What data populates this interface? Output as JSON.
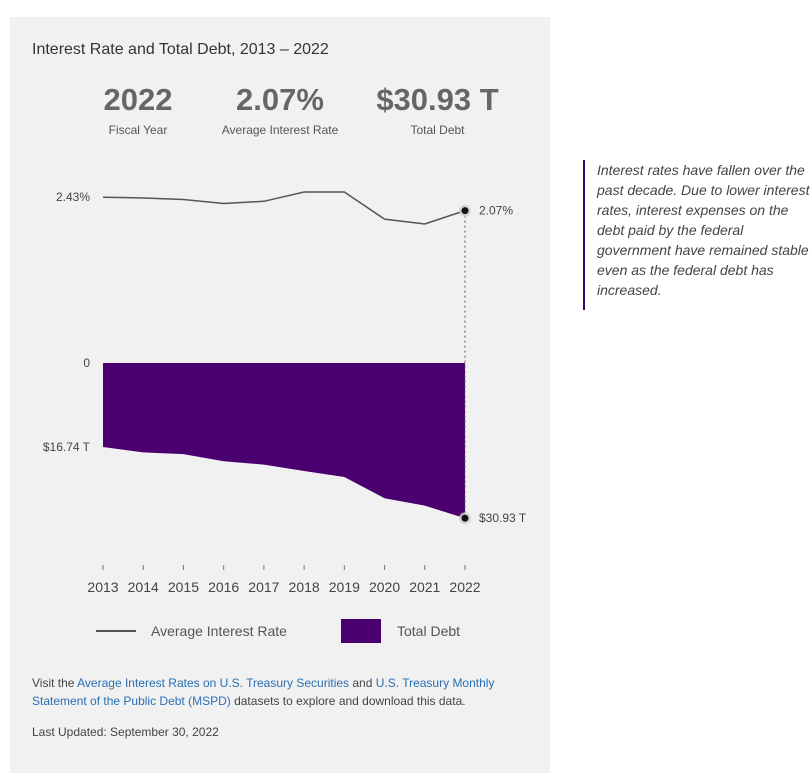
{
  "card": {
    "title": "Interest Rate and Total Debt, 2013 – 2022",
    "stats": [
      {
        "value": "2022",
        "label": "Fiscal Year"
      },
      {
        "value": "2.07%",
        "label": "Average Interest Rate"
      },
      {
        "value": "$30.93 T",
        "label": "Total Debt"
      }
    ]
  },
  "chart_data": {
    "type": "line",
    "x": [
      2013,
      2014,
      2015,
      2016,
      2017,
      2018,
      2019,
      2020,
      2021,
      2022
    ],
    "x_tick_labels": [
      "2013",
      "2014",
      "2015",
      "2016",
      "2017",
      "2018",
      "2019",
      "2020",
      "2021",
      "2022"
    ],
    "series": [
      {
        "name": "Average Interest Rate",
        "type": "line",
        "unit": "%",
        "values": [
          2.43,
          2.41,
          2.37,
          2.26,
          2.32,
          2.57,
          2.57,
          1.84,
          1.71,
          2.07
        ],
        "y_tick_labels": [
          "2.43%"
        ],
        "end_label": "2.07%",
        "color": "#555555"
      },
      {
        "name": "Total Debt",
        "type": "area",
        "unit": "$ Trillions",
        "values": [
          16.74,
          17.82,
          18.15,
          19.57,
          20.24,
          21.52,
          22.72,
          26.95,
          28.43,
          30.93
        ],
        "y_tick_labels": [
          "0",
          "$16.74 T"
        ],
        "end_label": "$30.93 T",
        "color": "#4a006e"
      }
    ],
    "legend": [
      {
        "label": "Average Interest Rate",
        "symbol": "line"
      },
      {
        "label": "Total Debt",
        "symbol": "square"
      }
    ],
    "legend_position": "bottom",
    "grid": false
  },
  "footer": {
    "prefix": "Visit the ",
    "link1": "Average Interest Rates on U.S. Treasury Securities",
    "middle": " and ",
    "link2": "U.S. Treasury Monthly Statement of the Public Debt (MSPD)",
    "suffix": " datasets to explore and download this data.",
    "updated": "Last Updated: September 30, 2022"
  },
  "note": "Interest rates have fallen over the past decade. Due to lower interest rates, interest expenses on the debt paid by the federal government have remained stable even as the federal debt has increased."
}
